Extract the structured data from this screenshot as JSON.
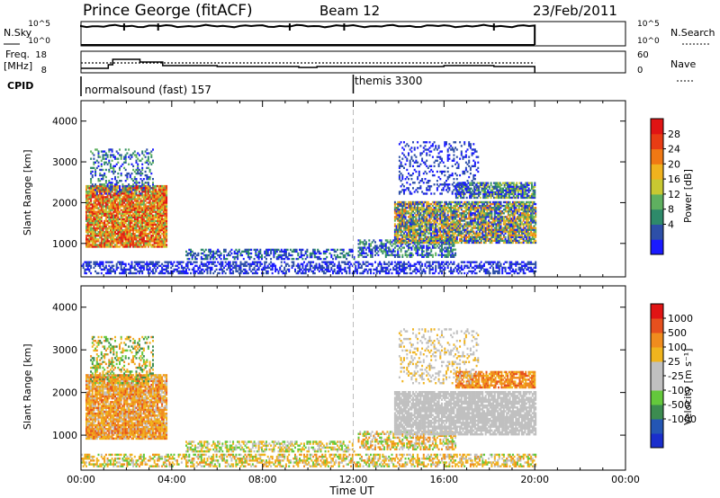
{
  "header": {
    "station": "Prince George (fitACF)",
    "beam": "Beam 12",
    "date": "23/Feb/2011"
  },
  "top_panels": {
    "nsky_label": "N.Sky",
    "nsky_ticks": [
      "10^5",
      "10^0"
    ],
    "nsearch_label": "N.Search",
    "nsearch_ticks": [
      "10^5",
      "10^0"
    ],
    "freq_label_1": "Freq.",
    "freq_label_2": "[MHz]",
    "freq_ticks": [
      "18",
      "8"
    ],
    "nave_label": "Nave",
    "nave_ticks": [
      "60",
      "0"
    ],
    "cpid_label": "CPID",
    "cpid_segments": [
      {
        "label": "normalsound (fast) 157",
        "start_hour": 0
      },
      {
        "label": "themis 3300",
        "start_hour": 12
      }
    ]
  },
  "chart_data": [
    {
      "type": "heatmap",
      "name": "Power",
      "xlabel": "",
      "ylabel": "Slant Range [km]",
      "xlim": [
        0,
        24
      ],
      "ylim": [
        180,
        4500
      ],
      "yticks": [
        "1000",
        "2000",
        "3000",
        "4000"
      ],
      "colorbar_label": "Power [dB]",
      "colorbar_ticks": [
        "28",
        "24",
        "20",
        "16",
        "12",
        "8",
        "4"
      ],
      "colors": [
        "#1a1aff",
        "#2d4fa8",
        "#2e8a6a",
        "#5fb060",
        "#c8c832",
        "#f0b21e",
        "#f07814",
        "#e83c14",
        "#e01414"
      ]
    },
    {
      "type": "heatmap",
      "name": "Velocity",
      "xlabel": "Time UT",
      "ylabel": "Slant Range [km]",
      "xlim": [
        0,
        24
      ],
      "ylim": [
        180,
        4500
      ],
      "yticks": [
        "1000",
        "2000",
        "3000",
        "4000"
      ],
      "xticks": [
        "00:00",
        "04:00",
        "08:00",
        "12:00",
        "16:00",
        "20:00",
        "00:00"
      ],
      "colorbar_label": "Velocity [m s⁻¹]",
      "colorbar_ticks": [
        "1000",
        "500",
        "100",
        "25",
        "-25",
        "-100",
        "-500",
        "-1000"
      ],
      "colors": [
        "#1a2ecc",
        "#2456b4",
        "#3c8c50",
        "#64c83c",
        "#c0c0c0",
        "#c0c0c0",
        "#f0b41e",
        "#f08c1e",
        "#e6501e",
        "#e01414"
      ]
    }
  ]
}
